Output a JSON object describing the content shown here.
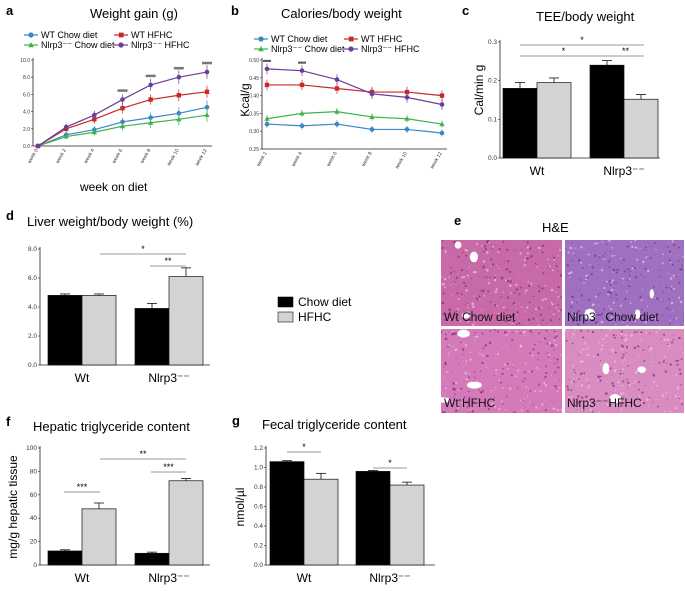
{
  "panels": {
    "a": {
      "label": "a",
      "title": "Weight gain (g)",
      "xlabel": "week on diet"
    },
    "b": {
      "label": "b",
      "title": "Calories/body weight",
      "ylabel": "Kcal/g"
    },
    "c": {
      "label": "c",
      "title": "TEE/body weight",
      "ylabel": "Cal/min g"
    },
    "d": {
      "label": "d",
      "title": "Liver weight/body weight (%)"
    },
    "e": {
      "label": "e",
      "title": "H&E",
      "captions": [
        "Wt Chow diet",
        "Nlrp3⁻ Chow diet",
        "Wt HFHC",
        "Nlrp3⁻⁻HFHC"
      ]
    },
    "f": {
      "label": "f",
      "title": "Hepatic triglyceride content",
      "ylabel": "mg/g hepatic tissue"
    },
    "g": {
      "label": "g",
      "title": "Fecal triglyceride content",
      "ylabel": "nmol/µl"
    }
  },
  "legend_lines": [
    {
      "name": "WT Chow diet",
      "color": "#3a86c8",
      "marker": "circle"
    },
    {
      "name": "WT HFHC",
      "color": "#c82828",
      "marker": "square"
    },
    {
      "name": "Nlrp3⁻⁻ Chow diet",
      "color": "#3cb44b",
      "marker": "triangle"
    },
    {
      "name": "Nlrp3⁻⁻ HFHC",
      "color": "#6a3d9a",
      "marker": "circle"
    }
  ],
  "legend_bars": [
    {
      "name": "Chow diet",
      "color": "#000000"
    },
    {
      "name": "HFHC",
      "color": "#d3d3d3"
    }
  ],
  "chart_data": [
    {
      "id": "a",
      "type": "line",
      "title": "Weight gain (g)",
      "xlabel": "week on diet",
      "ylabel": "",
      "categories": [
        "week 0",
        "week 2",
        "week 4",
        "week 6",
        "week 8",
        "week 10",
        "week 12"
      ],
      "ylim": [
        0,
        10
      ],
      "yticks": [
        "0.0",
        "2.0",
        "4.0",
        "6.0",
        "8.0",
        "10.0"
      ],
      "series": [
        {
          "name": "WT Chow diet",
          "color": "#3a86c8",
          "values": [
            0,
            1.3,
            1.9,
            2.8,
            3.3,
            3.8,
            4.5
          ],
          "err": [
            0,
            0.3,
            0.4,
            0.5,
            0.6,
            0.7,
            0.8
          ]
        },
        {
          "name": "Nlrp3⁻⁻ Chow diet",
          "color": "#3cb44b",
          "values": [
            0,
            1.1,
            1.6,
            2.3,
            2.7,
            3.1,
            3.6
          ],
          "err": [
            0,
            0.3,
            0.4,
            0.5,
            0.6,
            0.7,
            0.8
          ]
        },
        {
          "name": "WT HFHC",
          "color": "#c82828",
          "values": [
            0,
            2.0,
            3.1,
            4.4,
            5.4,
            5.9,
            6.3
          ],
          "err": [
            0,
            0.4,
            0.5,
            0.6,
            0.6,
            0.7,
            0.7
          ]
        },
        {
          "name": "Nlrp3⁻⁻ HFHC",
          "color": "#6a3d9a",
          "values": [
            0,
            2.2,
            3.6,
            5.4,
            7.1,
            8.0,
            8.6
          ],
          "err": [
            0,
            0.4,
            0.5,
            0.6,
            0.7,
            0.8,
            0.8
          ]
        }
      ]
    },
    {
      "id": "b",
      "type": "line",
      "title": "Calories/body weight",
      "ylabel": "Kcal/g",
      "categories": [
        "week 2",
        "week 4",
        "week 6",
        "week 8",
        "week 10",
        "week 12"
      ],
      "ylim": [
        0.25,
        0.5
      ],
      "yticks": [
        "0.25",
        "0.30",
        "0.35",
        "0.40",
        "0.45",
        "0.50"
      ],
      "series": [
        {
          "name": "WT Chow diet",
          "color": "#3a86c8",
          "values": [
            0.32,
            0.315,
            0.32,
            0.305,
            0.305,
            0.295
          ],
          "err": [
            0.01,
            0.01,
            0.01,
            0.01,
            0.01,
            0.01
          ]
        },
        {
          "name": "Nlrp3⁻⁻ Chow diet",
          "color": "#3cb44b",
          "values": [
            0.335,
            0.35,
            0.355,
            0.34,
            0.335,
            0.32
          ],
          "err": [
            0.01,
            0.01,
            0.01,
            0.01,
            0.01,
            0.01
          ]
        },
        {
          "name": "WT HFHC",
          "color": "#c82828",
          "values": [
            0.43,
            0.43,
            0.42,
            0.41,
            0.41,
            0.4
          ],
          "err": [
            0.015,
            0.015,
            0.015,
            0.015,
            0.015,
            0.015
          ]
        },
        {
          "name": "Nlrp3⁻⁻ HFHC",
          "color": "#6a3d9a",
          "values": [
            0.475,
            0.47,
            0.445,
            0.405,
            0.395,
            0.375
          ],
          "err": [
            0.015,
            0.015,
            0.015,
            0.015,
            0.015,
            0.015
          ]
        }
      ]
    },
    {
      "id": "c",
      "type": "bar",
      "title": "TEE/body weight",
      "ylabel": "Cal/min g",
      "categories": [
        "Wt",
        "Nlrp3⁻⁻"
      ],
      "ylim": [
        0,
        0.3
      ],
      "yticks": [
        "0.0",
        "0.1",
        "0.2",
        "0.3"
      ],
      "series": [
        {
          "name": "Chow diet",
          "color": "#000000",
          "values": [
            0.18,
            0.24
          ],
          "err": [
            0.015,
            0.012
          ]
        },
        {
          "name": "HFHC",
          "color": "#d3d3d3",
          "values": [
            0.195,
            0.152
          ],
          "err": [
            0.012,
            0.012
          ]
        }
      ],
      "annotations": [
        "*",
        "*",
        "**"
      ]
    },
    {
      "id": "d",
      "type": "bar",
      "title": "Liver weight/body weight (%)",
      "ylabel": "",
      "categories": [
        "Wt",
        "Nlrp3⁻⁻"
      ],
      "ylim": [
        0,
        8
      ],
      "yticks": [
        "0.0",
        "2.0",
        "4.0",
        "6.0",
        "8.0"
      ],
      "series": [
        {
          "name": "Chow diet",
          "color": "#000000",
          "values": [
            4.8,
            3.9
          ],
          "err": [
            0.1,
            0.35
          ]
        },
        {
          "name": "HFHC",
          "color": "#d3d3d3",
          "values": [
            4.8,
            6.1
          ],
          "err": [
            0.1,
            0.6
          ]
        }
      ],
      "annotations": [
        "*",
        "**"
      ]
    },
    {
      "id": "f",
      "type": "bar",
      "title": "Hepatic triglyceride content",
      "ylabel": "mg/g hepatic tissue",
      "categories": [
        "Wt",
        "Nlrp3⁻⁻"
      ],
      "ylim": [
        0,
        100
      ],
      "yticks": [
        "0",
        "20",
        "40",
        "60",
        "80",
        "100"
      ],
      "series": [
        {
          "name": "Chow diet",
          "color": "#000000",
          "values": [
            12,
            10
          ],
          "err": [
            1,
            1
          ]
        },
        {
          "name": "HFHC",
          "color": "#d3d3d3",
          "values": [
            48,
            72
          ],
          "err": [
            5,
            2
          ]
        }
      ],
      "annotations": [
        "***",
        "***",
        "**"
      ]
    },
    {
      "id": "g",
      "type": "bar",
      "title": "Fecal triglyceride content",
      "ylabel": "nmol/µl",
      "categories": [
        "Wt",
        "Nlrp3⁻⁻"
      ],
      "ylim": [
        0,
        1.2
      ],
      "yticks": [
        "0.0",
        "0.2",
        "0.4",
        "0.6",
        "0.8",
        "1.0",
        "1.2"
      ],
      "series": [
        {
          "name": "Chow diet",
          "color": "#000000",
          "values": [
            1.06,
            0.96
          ],
          "err": [
            0.01,
            0.01
          ]
        },
        {
          "name": "HFHC",
          "color": "#d3d3d3",
          "values": [
            0.88,
            0.82
          ],
          "err": [
            0.06,
            0.03
          ]
        }
      ],
      "annotations": [
        "*",
        "*"
      ]
    }
  ]
}
